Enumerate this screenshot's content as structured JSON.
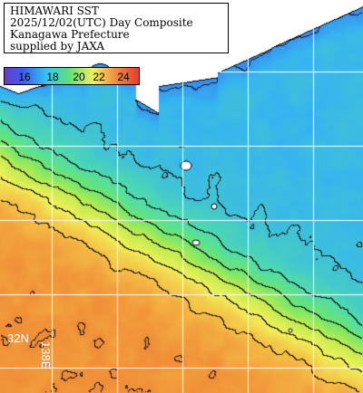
{
  "header": {
    "line1": "HIMAWARI SST",
    "line2": "2025/12/02(UTC) Day Composite",
    "line3": "Kanagawa Prefecture",
    "line4": "supplied by JAXA"
  },
  "colorbar": {
    "ticks": [
      "16",
      "18",
      "20",
      "22",
      "24"
    ],
    "tick_values": [
      16,
      18,
      20,
      22,
      24
    ],
    "range": [
      14.6,
      25.6
    ],
    "colors": {
      "violet": "#6a3cc8",
      "blue": "#3a5ef0",
      "cyan": "#36c8f0",
      "green": "#5ee07a",
      "yellow": "#f0f060",
      "orange": "#f09040",
      "red": "#e83a30"
    }
  },
  "map": {
    "lat_label": "32N",
    "lon_label": "138E",
    "land_color": "#ffffff",
    "grid_color": "#ffffff",
    "contour_color": "#1a1a1a"
  }
}
